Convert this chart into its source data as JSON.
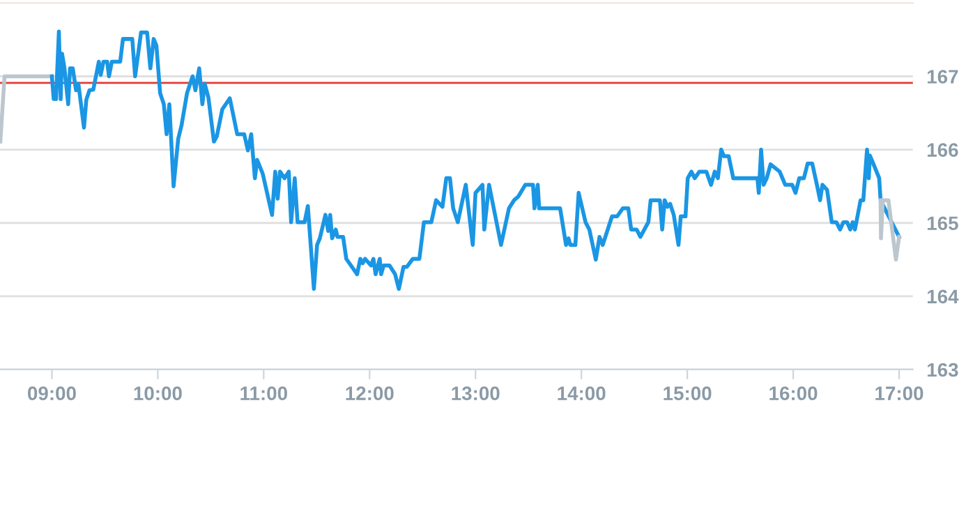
{
  "chart_data": {
    "type": "line",
    "xlim": [
      8.51,
      17.13
    ],
    "ylim": [
      163,
      168
    ],
    "xticks": [
      {
        "value": 9,
        "label": "09:00"
      },
      {
        "value": 10,
        "label": "10:00"
      },
      {
        "value": 11,
        "label": "11:00"
      },
      {
        "value": 12,
        "label": "12:00"
      },
      {
        "value": 13,
        "label": "13:00"
      },
      {
        "value": 14,
        "label": "14:00"
      },
      {
        "value": 15,
        "label": "15:00"
      },
      {
        "value": 16,
        "label": "16:00"
      },
      {
        "value": 17,
        "label": "17:00"
      }
    ],
    "yticks": [
      163,
      164,
      165,
      166,
      167
    ],
    "grid": "y",
    "legend": false,
    "marker": "none",
    "line_style": "solid",
    "ref_lines": [
      {
        "axis": "y",
        "value": 166.91,
        "color": "#e53935",
        "line_style": "solid"
      }
    ],
    "series": [
      {
        "color": "#bcc6cf",
        "x": [
          8.513,
          8.553,
          9.0
        ],
        "values": [
          166.11,
          167.0,
          167.0
        ]
      },
      {
        "color": "#1a96e4",
        "x": [
          9.0,
          9.017,
          9.039,
          9.066,
          9.083,
          9.096,
          9.118,
          9.154,
          9.171,
          9.197,
          9.228,
          9.25,
          9.303,
          9.325,
          9.355,
          9.391,
          9.443,
          9.461,
          9.487,
          9.522,
          9.539,
          9.566,
          9.645,
          9.671,
          9.759,
          9.786,
          9.842,
          9.899,
          9.93,
          9.961,
          9.987,
          10.022,
          10.057,
          10.083,
          10.109,
          10.149,
          10.193,
          10.224,
          10.276,
          10.329,
          10.355,
          10.391,
          10.421,
          10.443,
          10.478,
          10.53,
          10.557,
          10.609,
          10.68,
          10.75,
          10.816,
          10.851,
          10.882,
          10.917,
          10.938,
          10.991,
          11.079,
          11.109,
          11.132,
          11.154,
          11.197,
          11.237,
          11.259,
          11.293,
          11.32,
          11.386,
          11.417,
          11.474,
          11.504,
          11.53,
          11.583,
          11.609,
          11.628,
          11.646,
          11.68,
          11.697,
          11.75,
          11.78,
          11.882,
          11.912,
          11.934,
          11.957,
          12.013,
          12.036,
          12.057,
          12.096,
          12.109,
          12.132,
          12.188,
          12.241,
          12.276,
          12.32,
          12.351,
          12.408,
          12.47,
          12.513,
          12.583,
          12.628,
          12.688,
          12.724,
          12.759,
          12.789,
          12.833,
          12.908,
          12.974,
          13.0,
          13.066,
          13.083,
          13.128,
          13.241,
          13.316,
          13.364,
          13.404,
          13.47,
          13.543,
          13.557,
          13.588,
          13.601,
          13.799,
          13.855,
          13.878,
          13.895,
          13.943,
          13.974,
          14.039,
          14.075,
          14.136,
          14.171,
          14.201,
          14.289,
          14.338,
          14.391,
          14.443,
          14.47,
          14.522,
          14.557,
          14.632,
          14.654,
          14.741,
          14.763,
          14.786,
          14.812,
          14.838,
          14.872,
          14.917,
          14.938,
          14.983,
          15.004,
          15.039,
          15.07,
          15.114,
          15.18,
          15.224,
          15.259,
          15.289,
          15.32,
          15.346,
          15.391,
          15.434,
          15.662,
          15.675,
          15.697,
          15.72,
          15.75,
          15.786,
          15.872,
          15.925,
          15.991,
          16.022,
          16.057,
          16.101,
          16.136,
          16.18,
          16.224,
          16.254,
          16.276,
          16.32,
          16.364,
          16.408,
          16.443,
          16.474,
          16.509,
          16.539,
          16.562,
          16.583,
          16.636,
          16.662,
          16.697,
          16.714,
          16.724,
          16.759,
          16.812,
          16.825,
          17.0
        ],
        "values": [
          167.0,
          166.69,
          166.69,
          167.61,
          166.69,
          167.31,
          167.12,
          166.62,
          167.11,
          167.11,
          166.81,
          166.9,
          166.3,
          166.68,
          166.81,
          166.82,
          167.2,
          167.02,
          167.2,
          167.2,
          167.0,
          167.2,
          167.2,
          167.51,
          167.51,
          167.0,
          167.6,
          167.6,
          167.11,
          167.51,
          167.42,
          166.77,
          166.62,
          166.21,
          166.62,
          165.5,
          166.15,
          166.33,
          166.77,
          167.0,
          166.81,
          167.11,
          166.62,
          166.9,
          166.71,
          166.11,
          166.18,
          166.55,
          166.7,
          166.21,
          166.21,
          165.99,
          166.21,
          165.61,
          165.86,
          165.67,
          165.11,
          165.7,
          165.33,
          165.7,
          165.61,
          165.7,
          165.01,
          165.61,
          165.01,
          165.01,
          165.23,
          164.1,
          164.7,
          164.79,
          165.11,
          164.89,
          165.11,
          164.79,
          164.91,
          164.81,
          164.81,
          164.51,
          164.3,
          164.51,
          164.45,
          164.51,
          164.42,
          164.51,
          164.3,
          164.51,
          164.3,
          164.42,
          164.42,
          164.3,
          164.1,
          164.4,
          164.4,
          164.51,
          164.51,
          165.01,
          165.01,
          165.31,
          165.22,
          165.61,
          165.61,
          165.2,
          165.01,
          165.52,
          164.7,
          165.41,
          165.52,
          164.91,
          165.52,
          164.7,
          165.2,
          165.31,
          165.36,
          165.52,
          165.52,
          165.2,
          165.52,
          165.2,
          165.2,
          164.7,
          164.79,
          164.7,
          164.7,
          165.41,
          165.01,
          164.91,
          164.5,
          164.81,
          164.7,
          165.09,
          165.09,
          165.2,
          165.2,
          164.91,
          164.91,
          164.81,
          165.01,
          165.31,
          165.31,
          164.91,
          165.31,
          165.22,
          165.26,
          165.11,
          164.7,
          165.09,
          165.09,
          165.61,
          165.7,
          165.61,
          165.7,
          165.7,
          165.52,
          165.7,
          165.61,
          166.0,
          165.91,
          165.91,
          165.61,
          165.61,
          165.41,
          166.0,
          165.52,
          165.61,
          165.8,
          165.7,
          165.52,
          165.52,
          165.41,
          165.61,
          165.61,
          165.81,
          165.81,
          165.52,
          165.31,
          165.52,
          165.45,
          165.01,
          165.01,
          164.91,
          165.01,
          165.01,
          164.91,
          165.01,
          164.91,
          165.31,
          165.31,
          166.0,
          165.61,
          165.92,
          165.8,
          165.61,
          165.31,
          164.81
        ]
      },
      {
        "color": "#bcc6cf",
        "x": [
          16.825,
          16.829,
          16.846,
          16.899,
          16.97,
          17.0
        ],
        "values": [
          165.31,
          164.79,
          165.31,
          165.31,
          164.5,
          164.81
        ]
      }
    ]
  }
}
